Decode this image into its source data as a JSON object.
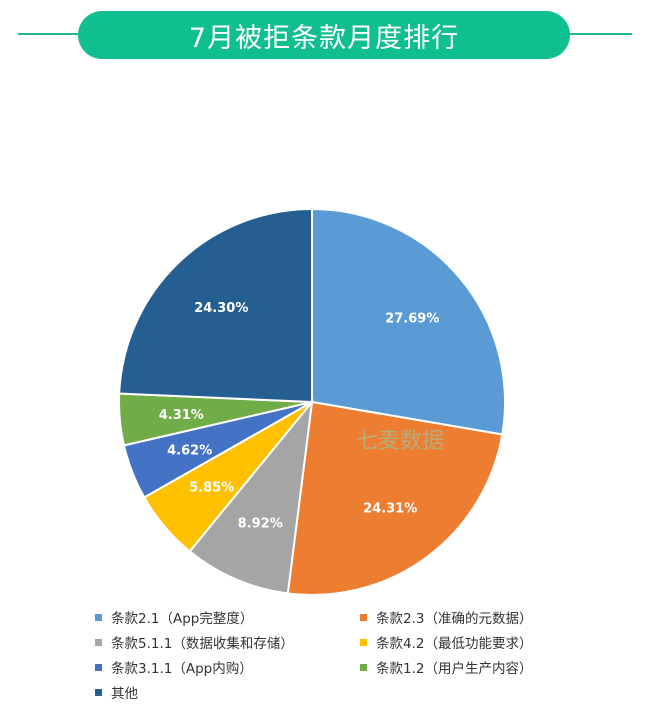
{
  "header": {
    "title": "7月被拒条款月度排行"
  },
  "watermark": {
    "text": "七麦数据"
  },
  "chart_data": {
    "type": "pie",
    "title": "7月被拒条款月度排行",
    "slices": [
      {
        "name": "条款2.1（App完整度）",
        "value": 27.69,
        "label": "27.69%",
        "color": "#5b9bd5"
      },
      {
        "name": "条款2.3（准确的元数据）",
        "value": 24.31,
        "label": "24.31%",
        "color": "#ed7d31"
      },
      {
        "name": "条款5.1.1（数据收集和存储）",
        "value": 8.92,
        "label": "8.92%",
        "color": "#a5a5a5"
      },
      {
        "name": "条款4.2（最低功能要求）",
        "value": 5.85,
        "label": "5.85%",
        "color": "#ffc000"
      },
      {
        "name": "条款3.1.1（App内购）",
        "value": 4.62,
        "label": "4.62%",
        "color": "#4472c4"
      },
      {
        "name": "条款1.2（用户生产内容）",
        "value": 4.31,
        "label": "4.31%",
        "color": "#70ad47"
      },
      {
        "name": "其他",
        "value": 24.3,
        "label": "24.30%",
        "color": "#255e91"
      }
    ],
    "legend_position": "bottom"
  }
}
